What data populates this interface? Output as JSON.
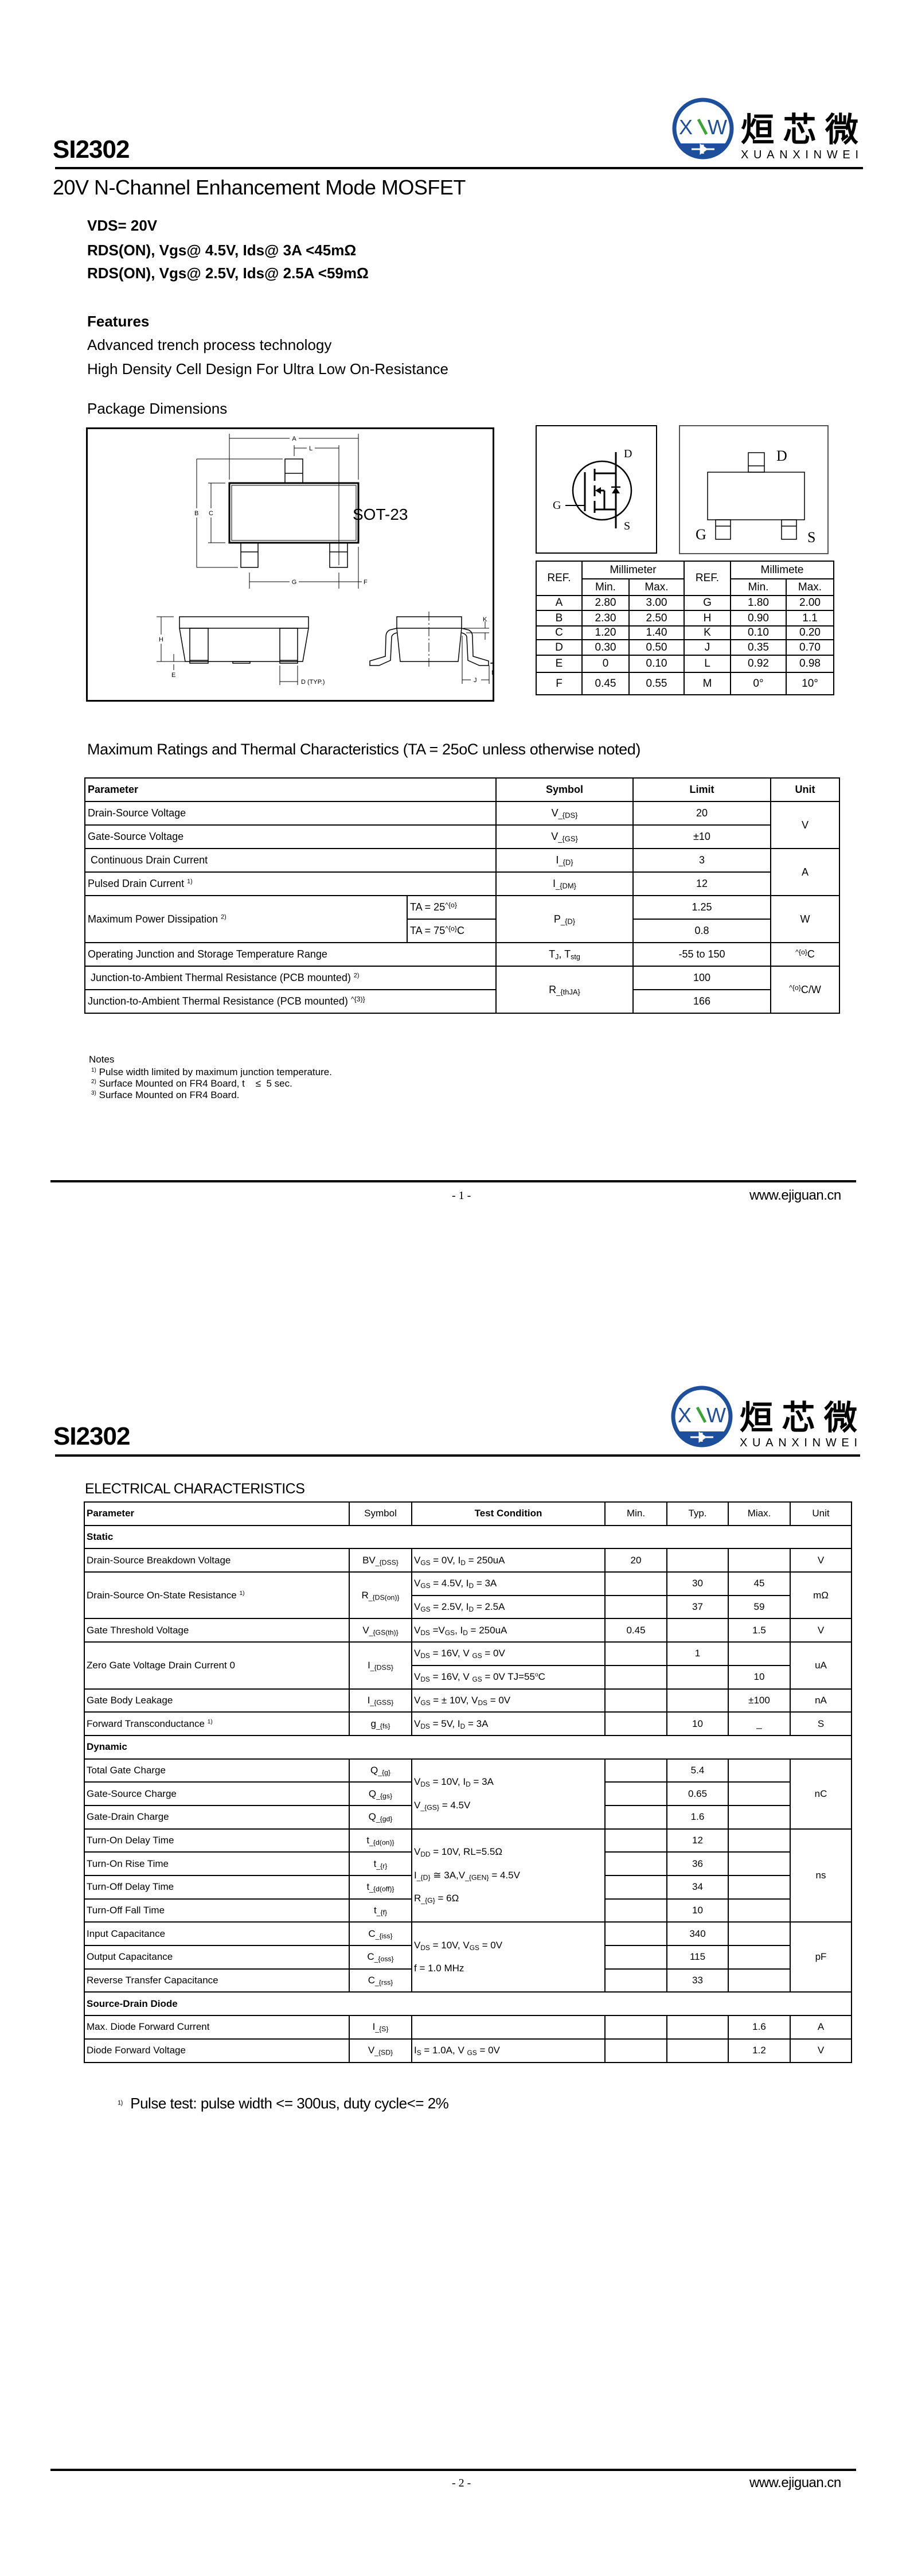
{
  "logo": {
    "cn": "烜芯微",
    "en": "XUANXINWEI",
    "mark": "XW",
    "blue": "#1d4f9c",
    "green": "#3aa535"
  },
  "page1": {
    "part": "SI2302",
    "subtitle": "20V N-Channel Enhancement Mode MOSFET",
    "specs": [
      "VDS=  20V",
      "RDS(ON), Vgs@ 4.5V, Ids@ 3A <45mΩ",
      "RDS(ON), Vgs@ 2.5V, Ids@ 2.5A  <59mΩ"
    ],
    "features_title": "Features",
    "features": [
      "Advanced trench process technology",
      "High Density Cell Design For Ultra Low On-Resistance"
    ],
    "package_title": "Package Dimensions",
    "package": {
      "name": "SOT-23",
      "dim_labels": [
        "A",
        "L",
        "B",
        "C",
        "G",
        "F",
        "H",
        "E",
        "D  (TYP.)",
        "K",
        "J",
        "M"
      ],
      "pins": {
        "d": "D",
        "g": "G",
        "s": "S"
      }
    },
    "dim_table": {
      "ref": "REF.",
      "unit": "Millimeter",
      "unit2": "Millimete",
      "min": "Min.",
      "max": "Max.",
      "rows": [
        {
          "r1": "A",
          "min1": "2.80",
          "max1": "3.00",
          "r2": "G",
          "min2": "1.80",
          "max2": "2.00"
        },
        {
          "r1": "B",
          "min1": "2.30",
          "max1": "2.50",
          "r2": "H",
          "min2": "0.90",
          "max2": "1.1"
        },
        {
          "r1": "C",
          "min1": "1.20",
          "max1": "1.40",
          "r2": "K",
          "min2": "0.10",
          "max2": "0.20"
        },
        {
          "r1": "D",
          "min1": "0.30",
          "max1": "0.50",
          "r2": "J",
          "min2": "0.35",
          "max2": "0.70"
        },
        {
          "r1": "E",
          "min1": "0",
          "max1": "0.10",
          "r2": "L",
          "min2": "0.92",
          "max2": "0.98"
        },
        {
          "r1": "F",
          "min1": "0.45",
          "max1": "0.55",
          "r2": "M",
          "min2": "0°",
          "max2": "10°"
        }
      ]
    },
    "ratings": {
      "title": "Maximum Ratings and Thermal Characteristics (TA = 25oC unless otherwise noted)",
      "headers": {
        "param": "Parameter",
        "symbol": "Symbol",
        "limit": "Limit",
        "unit": "Unit"
      },
      "rows": [
        {
          "param": "Drain-Source Voltage",
          "symbol": "V_{DS}",
          "limit": "20"
        },
        {
          "param": "Gate-Source Voltage",
          "symbol": "V_{GS}",
          "limit": "±10"
        },
        {
          "param": " Continuous Drain Current",
          "symbol": "I_{D}",
          "limit": "3"
        },
        {
          "param": "Pulsed Drain Current ^{1)}",
          "symbol": "I_{DM}",
          "limit": "12"
        },
        {
          "param": "Maximum Power Dissipation ^{2)}",
          "cond1": "TA = 25^{o}",
          "cond2": "TA = 75^{o}C",
          "symbol": "P_{D}",
          "limit1": "1.25",
          "limit2": "0.8"
        },
        {
          "param": "Operating Junction and Storage Temperature Range",
          "symbol": "T_{J}, T_{stg}",
          "limit": "-55 to 150"
        },
        {
          "param": " Junction-to-Ambient Thermal Resistance (PCB mounted) ^{2)}",
          "param2": "Junction-to-Ambient Thermal Resistance (PCB mounted) ^{3)}",
          "symbol": "R_{thJA}",
          "limit1": "100",
          "limit2": "166"
        }
      ],
      "units": {
        "v": "V",
        "a": "A",
        "w": "W",
        "c": "^{o}C",
        "cw": "^{o}C/W"
      }
    },
    "notes": {
      "title": "Notes",
      "items": [
        {
          "mark": "1)",
          "text": "Pulse width limited by maximum junction temperature."
        },
        {
          "mark": "2)",
          "text": "Surface Mounted on FR4 Board, t    ≤  5 sec."
        },
        {
          "mark": "3)",
          "text": "Surface Mounted on FR4 Board."
        }
      ]
    },
    "footer": {
      "page": "- 1 -",
      "url": "www.ejiguan.cn"
    }
  },
  "page2": {
    "part": "SI2302",
    "electrical": {
      "title": "ELECTRICAL CHARACTERISTICS",
      "headers": {
        "param": "Parameter",
        "symbol": "Symbol",
        "cond": "Test Condition",
        "min": "Min.",
        "typ": "Typ.",
        "max": "Miax.",
        "unit": "Unit"
      },
      "sections": {
        "static": "Static",
        "dynamic": "Dynamic",
        "diode": "Source-Drain Diode"
      },
      "bv": {
        "param": "Drain-Source Breakdown Voltage",
        "symbol": "BV_{DSS}",
        "cond": "V_{GS} = 0V, I_{D} = 250uA",
        "min": "20",
        "unit": "V"
      },
      "rds": {
        "param": "Drain-Source On-State Resistance ^{1)}",
        "symbol": "R_{DS(on)}",
        "cond1": "V_{GS} =  4.5V, I_{D} = 3A",
        "typ1": "30",
        "max1": "45",
        "cond2": "V_{GS} =  2.5V, I_{D} = 2.5A",
        "typ2": "37",
        "max2": "59",
        "unit": "mΩ"
      },
      "vth": {
        "param": "Gate Threshold Voltage",
        "symbol": "V_{GS(th)}",
        "cond": "V_{DS} =V_{GS}, I_{D} =  250uA",
        "min": "0.45",
        "max": "1.5",
        "unit": "V"
      },
      "idss": {
        "param": "Zero Gate Voltage Drain Current 0",
        "symbol": "I_{DSS}",
        "cond1": "V_{DS} =  16V, V _{GS} = 0V",
        "typ1": "1",
        "cond2": "V_{DS} =  16V, V _{GS} = 0V  TJ=55^{o}C",
        "max2": "10",
        "unit": "uA"
      },
      "igss": {
        "param": "Gate Body Leakage",
        "symbol": "I_{GSS}",
        "cond": "V_{GS} = ± 10V, V_{DS} = 0V",
        "max": "±100",
        "unit": "nA"
      },
      "gfs": {
        "param": "Forward Transconductance ^{1)}",
        "symbol": "g_{fs}",
        "cond": "V_{DS} =  5V, I_{D} = 3A",
        "typ": "10",
        "max": "_",
        "unit": "S"
      },
      "charge": {
        "cond1": "V_{DS} = 10V, I_{D} = 3A",
        "cond2": "V_{GS} =  4.5V",
        "unit": "nC",
        "rows": [
          {
            "param": "Total Gate Charge",
            "symbol": "Q_{g}",
            "typ": "5.4"
          },
          {
            "param": "Gate-Source Charge",
            "symbol": "Q_{gs}",
            "typ": "0.65"
          },
          {
            "param": "Gate-Drain Charge",
            "symbol": "Q_{gd}",
            "typ": "1.6"
          }
        ]
      },
      "switching": {
        "cond1": "V_{DD} = 10V, RL=5.5Ω",
        "cond2": "I_{D} ≅ 3A,V_{GEN} = 4.5V",
        "cond3": "R_{G} = 6Ω",
        "unit": "ns",
        "rows": [
          {
            "param": "Turn-On Delay Time",
            "symbol": "t_{d(on)}",
            "typ": "12"
          },
          {
            "param": "Turn-On Rise Time",
            "symbol": "t_{r}",
            "typ": "36"
          },
          {
            "param": "Turn-Off Delay Time",
            "symbol": "t_{d(off)}",
            "typ": "34"
          },
          {
            "param": "Turn-Off Fall Time",
            "symbol": "t_{f}",
            "typ": "10"
          }
        ]
      },
      "capacitance": {
        "cond1": "V_{DS} = 10V, V_{GS} = 0V",
        "cond2": "f = 1.0 MHz",
        "unit": "pF",
        "rows": [
          {
            "param": "Input Capacitance",
            "symbol": "C_{iss}",
            "typ": "340"
          },
          {
            "param": "Output Capacitance",
            "symbol": "C_{oss}",
            "typ": "115"
          },
          {
            "param": "Reverse Transfer Capacitance",
            "symbol": "C_{rss}",
            "typ": "33"
          }
        ]
      },
      "is": {
        "param": "Max. Diode Forward Current",
        "symbol": "I_{S}",
        "max": "1.6",
        "unit": "A"
      },
      "vsd": {
        "param": "Diode Forward Voltage",
        "symbol": "V_{SD}",
        "cond": "I_{S} = 1.0A, V _{GS} = 0V",
        "max": "1.2",
        "unit": "V"
      }
    },
    "footnote": {
      "mark": "1)",
      "text": "Pulse test: pulse width <= 300us, duty cycle<= 2%"
    },
    "footer": {
      "page": "- 2 -",
      "url": "www.ejiguan.cn"
    }
  }
}
